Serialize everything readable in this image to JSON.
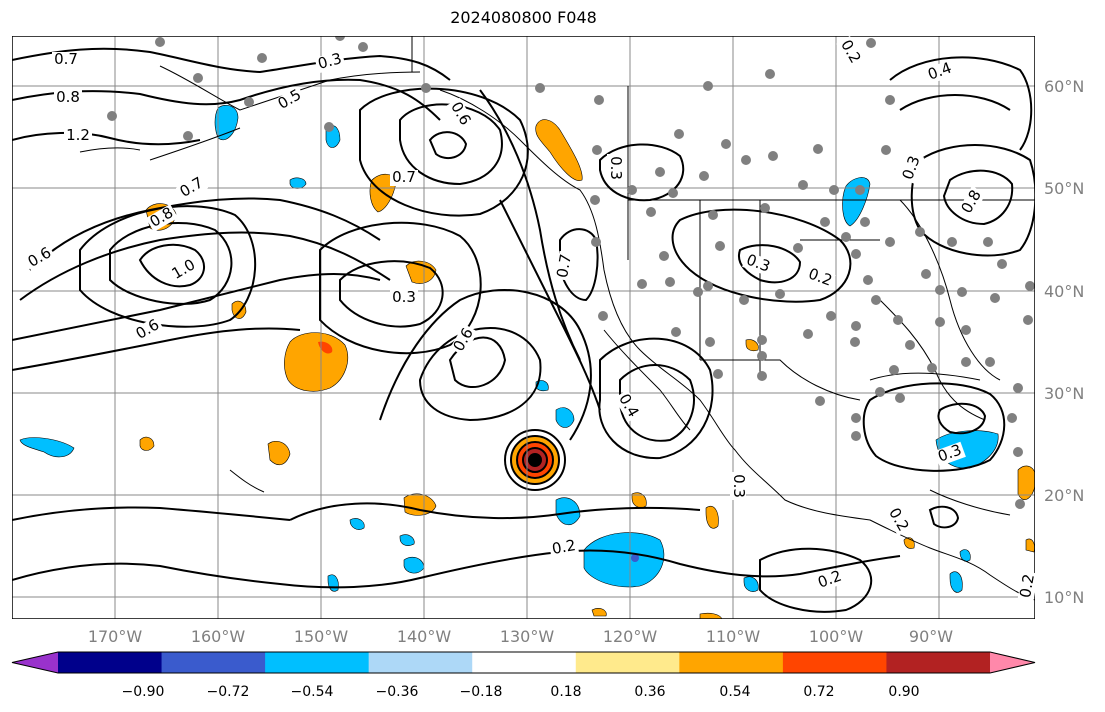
{
  "title": "2024080800 F048",
  "latitude_labels": [
    "60°N",
    "50°N",
    "40°N",
    "30°N",
    "20°N",
    "10°N"
  ],
  "longitude_labels": [
    "170°W",
    "160°W",
    "150°W",
    "140°W",
    "130°W",
    "120°W",
    "110°W",
    "100°W",
    "90°W"
  ],
  "colorbar": {
    "ticks": [
      "−0.90",
      "−0.72",
      "−0.54",
      "−0.36",
      "−0.18",
      "0.18",
      "0.36",
      "0.54",
      "0.72",
      "0.90"
    ],
    "colors": [
      "#9932cc",
      "#00008b",
      "#3a5bcd",
      "#00bfff",
      "#add8f7",
      "#ffffff",
      "#ffea8c",
      "#ffa500",
      "#ff4500",
      "#b22222",
      "#ff88aa"
    ]
  },
  "contour_labels": [
    {
      "text": "0.7"
    },
    {
      "text": "0.8"
    },
    {
      "text": "1.2"
    },
    {
      "text": "0.3"
    },
    {
      "text": "0.5"
    },
    {
      "text": "0.6"
    },
    {
      "text": "0.8"
    },
    {
      "text": "0.7"
    },
    {
      "text": "0.6"
    },
    {
      "text": "1.0"
    },
    {
      "text": "0.3"
    },
    {
      "text": "0.7"
    },
    {
      "text": "0.6"
    },
    {
      "text": "0.6"
    },
    {
      "text": "0.7"
    },
    {
      "text": "0.4"
    },
    {
      "text": "0.3"
    },
    {
      "text": "0.2"
    },
    {
      "text": "0.3"
    },
    {
      "text": "0.3"
    },
    {
      "text": "0.2"
    },
    {
      "text": "0.2"
    },
    {
      "text": "0.2"
    },
    {
      "text": "0.2"
    },
    {
      "text": "0.4"
    },
    {
      "text": "0.8"
    },
    {
      "text": "0.3"
    },
    {
      "text": "0.2"
    },
    {
      "text": "0.3"
    }
  ]
}
